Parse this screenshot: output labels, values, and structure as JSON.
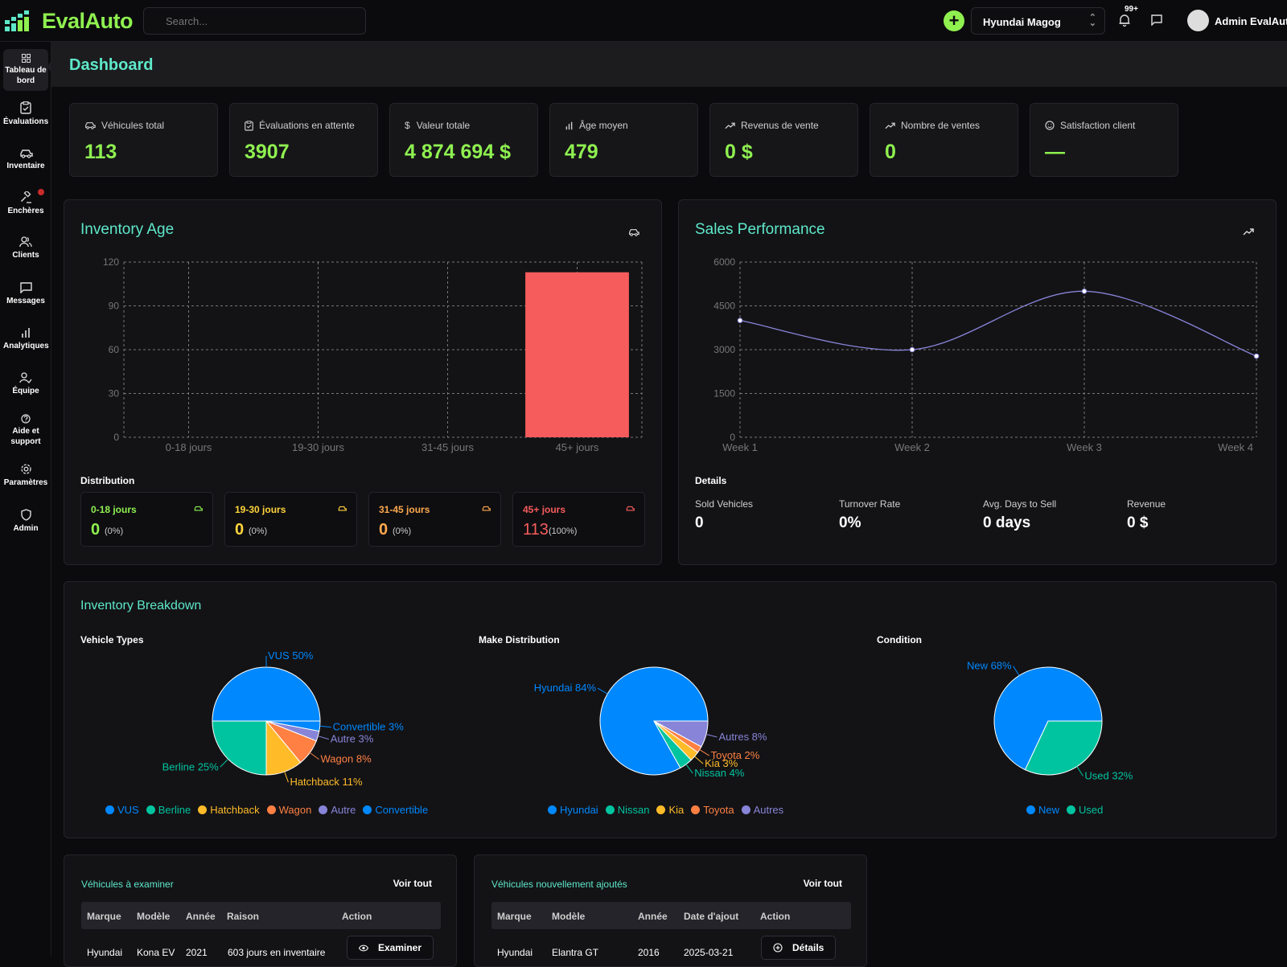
{
  "app": {
    "name": "EvalAuto",
    "search_placeholder": "Search...",
    "dealer": "Hyundai Magog",
    "notif_badge": "99+",
    "user": "Admin EvalAuto"
  },
  "colors": {
    "accent": "#8ff050",
    "title": "#5ee8c9",
    "blue": "#0088fe",
    "green": "#00c49f",
    "yellow": "#ffbb28",
    "orange": "#ff8042",
    "purple": "#8884d8",
    "red": "#f75c5c"
  },
  "sidebar": [
    {
      "label": "Tableau de bord",
      "icon": "dashboard-icon"
    },
    {
      "label": "Évaluations",
      "icon": "clipboard-icon"
    },
    {
      "label": "Inventaire",
      "icon": "car-icon"
    },
    {
      "label": "Enchères",
      "icon": "gavel-icon"
    },
    {
      "label": "Clients",
      "icon": "users-icon"
    },
    {
      "label": "Messages",
      "icon": "message-icon"
    },
    {
      "label": "Analytiques",
      "icon": "bar-chart-icon"
    },
    {
      "label": "Équipe",
      "icon": "team-icon"
    },
    {
      "label": "Aide et support",
      "icon": "help-icon"
    },
    {
      "label": "Paramètres",
      "icon": "gear-icon"
    },
    {
      "label": "Admin",
      "icon": "shield-icon"
    }
  ],
  "page_title": "Dashboard",
  "kpis": [
    {
      "label": "Véhicules total",
      "value": "113",
      "icon": "car-icon"
    },
    {
      "label": "Évaluations en attente",
      "value": "3907",
      "icon": "clipboard-icon"
    },
    {
      "label": "Valeur totale",
      "value": "4 874 694 $",
      "icon": "dollar-icon"
    },
    {
      "label": "Âge moyen",
      "value": "479",
      "icon": "bar-chart-icon"
    },
    {
      "label": "Revenus de vente",
      "value": "0 $",
      "icon": "trend-icon"
    },
    {
      "label": "Nombre de ventes",
      "value": "0",
      "icon": "trend-icon"
    },
    {
      "label": "Satisfaction client",
      "value": "—",
      "icon": "smile-icon"
    }
  ],
  "inventory_age": {
    "title": "Inventory Age",
    "distribution_title": "Distribution",
    "buckets": [
      {
        "label": "0-18 jours",
        "count": "0",
        "pct": "(0%)",
        "color": "#8ff050"
      },
      {
        "label": "19-30 jours",
        "count": "0",
        "pct": "(0%)",
        "color": "#ffd43b"
      },
      {
        "label": "31-45 jours",
        "count": "0",
        "pct": "(0%)",
        "color": "#ffa94d"
      },
      {
        "label": "45+ jours",
        "count": "113",
        "pct": "(100%)",
        "color": "#f75c5c"
      }
    ]
  },
  "sales_performance": {
    "title": "Sales Performance",
    "details_title": "Details",
    "details": [
      {
        "label": "Sold Vehicles",
        "value": "0"
      },
      {
        "label": "Turnover Rate",
        "value": "0%"
      },
      {
        "label": "Avg. Days to Sell",
        "value": "0 days"
      },
      {
        "label": "Revenue",
        "value": "0 $"
      }
    ]
  },
  "breakdown": {
    "title": "Inventory Breakdown",
    "vehicle_types_title": "Vehicle Types",
    "make_title": "Make Distribution",
    "condition_title": "Condition"
  },
  "chart_data": [
    {
      "type": "bar",
      "categories": [
        "0-18 jours",
        "19-30 jours",
        "31-45 jours",
        "45+ jours"
      ],
      "values": [
        0,
        0,
        0,
        113
      ],
      "ylim": [
        0,
        120
      ],
      "yticks": [
        0,
        30,
        60,
        90,
        120
      ],
      "colors": [
        "#8ff050",
        "#ffd43b",
        "#ffa94d",
        "#f75c5c"
      ],
      "grid": true
    },
    {
      "type": "line",
      "x": [
        "Week 1",
        "Week 2",
        "Week 3",
        "Week 4"
      ],
      "values": [
        4000,
        3000,
        5000,
        2780
      ],
      "ylim": [
        0,
        6000
      ],
      "yticks": [
        0,
        1500,
        3000,
        4500,
        6000
      ],
      "color": "#8884d8",
      "grid": true
    },
    {
      "type": "pie",
      "labels": [
        "VUS",
        "Berline",
        "Hatchback",
        "Wagon",
        "Autre",
        "Convertible"
      ],
      "values": [
        50,
        25,
        11,
        8,
        3,
        3
      ],
      "colors": [
        "#0088fe",
        "#00c49f",
        "#ffbb28",
        "#ff8042",
        "#8884d8",
        "#0088fe"
      ]
    },
    {
      "type": "pie",
      "labels": [
        "Hyundai",
        "Nissan",
        "Kia",
        "Toyota",
        "Autres"
      ],
      "values": [
        84,
        4,
        3,
        2,
        8
      ],
      "colors": [
        "#0088fe",
        "#00c49f",
        "#ffbb28",
        "#ff8042",
        "#8884d8"
      ]
    },
    {
      "type": "pie",
      "labels": [
        "New",
        "Used"
      ],
      "values": [
        68,
        32
      ],
      "colors": [
        "#0088fe",
        "#00c49f"
      ]
    }
  ],
  "review_table": {
    "title": "Véhicules à examiner",
    "link": "Voir tout",
    "columns": [
      "Marque",
      "Modèle",
      "Année",
      "Raison",
      "Action"
    ],
    "rows": [
      {
        "make": "Hyundai",
        "model": "Kona EV",
        "year": "2021",
        "reason": "603 jours en inventaire",
        "action": "Examiner"
      }
    ]
  },
  "recent_table": {
    "title": "Véhicules nouvellement ajoutés",
    "link": "Voir tout",
    "columns": [
      "Marque",
      "Modèle",
      "Année",
      "Date d'ajout",
      "Action"
    ],
    "rows": [
      {
        "make": "Hyundai",
        "model": "Elantra GT",
        "year": "2016",
        "date": "2025-03-21",
        "action": "Détails"
      }
    ]
  }
}
